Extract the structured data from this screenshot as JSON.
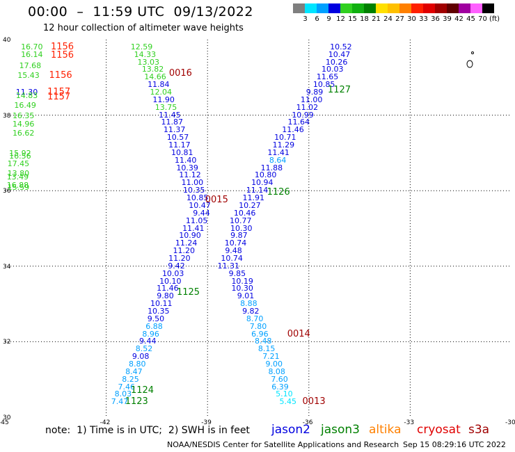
{
  "title": "00:00  –  11:59 UTC  09/13/2022",
  "subtitle": "12 hour collection of altimeter wave heights",
  "scale": {
    "labels": [
      "3",
      "6",
      "9",
      "12",
      "15",
      "18",
      "21",
      "24",
      "27",
      "30",
      "33",
      "36",
      "39",
      "42",
      "45",
      "70",
      "(ft)"
    ],
    "colors": [
      "#7f7f7f",
      "#00e5ff",
      "#00a0ff",
      "#0000e0",
      "#30d020",
      "#10b010",
      "#008000",
      "#ffe000",
      "#ffc000",
      "#ff8000",
      "#ff2000",
      "#e00000",
      "#a00000",
      "#600000",
      "#a000a0",
      "#ff60ff",
      "#000000"
    ]
  },
  "map": {
    "lon_ticks": [
      "-45",
      "-42",
      "-39",
      "-36",
      "-33",
      "-30"
    ],
    "lat_ticks": [
      "40",
      "38",
      "36",
      "34",
      "32",
      "30"
    ],
    "lon_range": [
      -45,
      -30
    ],
    "lat_range": [
      30,
      40
    ]
  },
  "measurements": [
    {
      "text": "10.52",
      "lon": -35.05,
      "lat": 39.8,
      "color": "#0000e0"
    },
    {
      "text": "10.47",
      "lon": -35.1,
      "lat": 39.6,
      "color": "#0000e0"
    },
    {
      "text": "10.26",
      "lon": -35.18,
      "lat": 39.4,
      "color": "#0000e0"
    },
    {
      "text": "10.03",
      "lon": -35.3,
      "lat": 39.2,
      "color": "#0000e0"
    },
    {
      "text": "11.65",
      "lon": -35.45,
      "lat": 39.0,
      "color": "#0000e0"
    },
    {
      "text": "10.85",
      "lon": -35.55,
      "lat": 38.8,
      "color": "#0000e0"
    },
    {
      "text": "9.89",
      "lon": -35.83,
      "lat": 38.6,
      "color": "#0000e0"
    },
    {
      "text": "11.00",
      "lon": -35.92,
      "lat": 38.4,
      "color": "#0000e0"
    },
    {
      "text": "11.02",
      "lon": -36.05,
      "lat": 38.2,
      "color": "#0000e0"
    },
    {
      "text": "10.99",
      "lon": -36.18,
      "lat": 38.0,
      "color": "#0000e0"
    },
    {
      "text": "11.64",
      "lon": -36.3,
      "lat": 37.8,
      "color": "#0000e0"
    },
    {
      "text": "11.46",
      "lon": -36.47,
      "lat": 37.6,
      "color": "#0000e0"
    },
    {
      "text": "10.71",
      "lon": -36.7,
      "lat": 37.4,
      "color": "#0000e0"
    },
    {
      "text": "11.29",
      "lon": -36.75,
      "lat": 37.2,
      "color": "#0000e0"
    },
    {
      "text": "11.41",
      "lon": -36.9,
      "lat": 37.0,
      "color": "#0000e0"
    },
    {
      "text": "8.64",
      "lon": -36.92,
      "lat": 36.8,
      "color": "#00a0ff"
    },
    {
      "text": "11.88",
      "lon": -37.1,
      "lat": 36.6,
      "color": "#0000e0"
    },
    {
      "text": "10.80",
      "lon": -37.28,
      "lat": 36.4,
      "color": "#0000e0"
    },
    {
      "text": "10.94",
      "lon": -37.38,
      "lat": 36.2,
      "color": "#0000e0"
    },
    {
      "text": "11.14",
      "lon": -37.53,
      "lat": 36.0,
      "color": "#0000e0"
    },
    {
      "text": "11.91",
      "lon": -37.64,
      "lat": 35.8,
      "color": "#0000e0"
    },
    {
      "text": "10.27",
      "lon": -37.75,
      "lat": 35.6,
      "color": "#0000e0"
    },
    {
      "text": "10.46",
      "lon": -37.9,
      "lat": 35.4,
      "color": "#0000e0"
    },
    {
      "text": "10.77",
      "lon": -38.02,
      "lat": 35.2,
      "color": "#0000e0"
    },
    {
      "text": "10.30",
      "lon": -38.0,
      "lat": 35.0,
      "color": "#0000e0"
    },
    {
      "text": "9.87",
      "lon": -38.07,
      "lat": 34.8,
      "color": "#0000e0"
    },
    {
      "text": "10.74",
      "lon": -38.17,
      "lat": 34.6,
      "color": "#0000e0"
    },
    {
      "text": "9.48",
      "lon": -38.23,
      "lat": 34.4,
      "color": "#0000e0"
    },
    {
      "text": "10.74",
      "lon": -38.28,
      "lat": 34.2,
      "color": "#0000e0"
    },
    {
      "text": "11.31",
      "lon": -38.38,
      "lat": 34.0,
      "color": "#0000e0"
    },
    {
      "text": "9.85",
      "lon": -38.12,
      "lat": 33.8,
      "color": "#0000e0"
    },
    {
      "text": "10.19",
      "lon": -37.97,
      "lat": 33.6,
      "color": "#0000e0"
    },
    {
      "text": "10.30",
      "lon": -37.97,
      "lat": 33.4,
      "color": "#0000e0"
    },
    {
      "text": "9.01",
      "lon": -37.87,
      "lat": 33.2,
      "color": "#0000e0"
    },
    {
      "text": "8.88",
      "lon": -37.78,
      "lat": 33.0,
      "color": "#00a0ff"
    },
    {
      "text": "9.82",
      "lon": -37.72,
      "lat": 32.8,
      "color": "#0000e0"
    },
    {
      "text": "8.70",
      "lon": -37.6,
      "lat": 32.6,
      "color": "#00a0ff"
    },
    {
      "text": "7.80",
      "lon": -37.5,
      "lat": 32.4,
      "color": "#00a0ff"
    },
    {
      "text": "6.96",
      "lon": -37.45,
      "lat": 32.2,
      "color": "#00a0ff"
    },
    {
      "text": "8.48",
      "lon": -37.35,
      "lat": 32.0,
      "color": "#00a0ff"
    },
    {
      "text": "8.15",
      "lon": -37.25,
      "lat": 31.8,
      "color": "#00a0ff"
    },
    {
      "text": "7.21",
      "lon": -37.12,
      "lat": 31.6,
      "color": "#00a0ff"
    },
    {
      "text": "9.00",
      "lon": -37.03,
      "lat": 31.4,
      "color": "#00a0ff"
    },
    {
      "text": "8.08",
      "lon": -36.95,
      "lat": 31.2,
      "color": "#00a0ff"
    },
    {
      "text": "7.60",
      "lon": -36.87,
      "lat": 31.0,
      "color": "#00a0ff"
    },
    {
      "text": "6.39",
      "lon": -36.85,
      "lat": 30.8,
      "color": "#00a0ff"
    },
    {
      "text": "5.10",
      "lon": -36.73,
      "lat": 30.6,
      "color": "#00e5ff"
    },
    {
      "text": "5.45",
      "lon": -36.62,
      "lat": 30.4,
      "color": "#00e5ff"
    },
    {
      "text": "12.59",
      "lon": -40.95,
      "lat": 39.8,
      "color": "#30d020"
    },
    {
      "text": "14.33",
      "lon": -40.85,
      "lat": 39.6,
      "color": "#30d020"
    },
    {
      "text": "13.03",
      "lon": -40.75,
      "lat": 39.4,
      "color": "#30d020"
    },
    {
      "text": "13.82",
      "lon": -40.62,
      "lat": 39.2,
      "color": "#30d020"
    },
    {
      "text": "14.66",
      "lon": -40.55,
      "lat": 39.0,
      "color": "#30d020"
    },
    {
      "text": "11.84",
      "lon": -40.45,
      "lat": 38.8,
      "color": "#0000e0"
    },
    {
      "text": "12.04",
      "lon": -40.38,
      "lat": 38.6,
      "color": "#30d020"
    },
    {
      "text": "11.90",
      "lon": -40.3,
      "lat": 38.4,
      "color": "#0000e0"
    },
    {
      "text": "13.75",
      "lon": -40.23,
      "lat": 38.2,
      "color": "#30d020"
    },
    {
      "text": "11.45",
      "lon": -40.12,
      "lat": 38.0,
      "color": "#0000e0"
    },
    {
      "text": "11.87",
      "lon": -40.05,
      "lat": 37.8,
      "color": "#0000e0"
    },
    {
      "text": "11.37",
      "lon": -39.98,
      "lat": 37.6,
      "color": "#0000e0"
    },
    {
      "text": "10.57",
      "lon": -39.88,
      "lat": 37.4,
      "color": "#0000e0"
    },
    {
      "text": "11.17",
      "lon": -39.83,
      "lat": 37.2,
      "color": "#0000e0"
    },
    {
      "text": "10.81",
      "lon": -39.75,
      "lat": 37.0,
      "color": "#0000e0"
    },
    {
      "text": "11.40",
      "lon": -39.65,
      "lat": 36.8,
      "color": "#0000e0"
    },
    {
      "text": "10.39",
      "lon": -39.6,
      "lat": 36.6,
      "color": "#0000e0"
    },
    {
      "text": "11.12",
      "lon": -39.52,
      "lat": 36.4,
      "color": "#0000e0"
    },
    {
      "text": "11.00",
      "lon": -39.45,
      "lat": 36.2,
      "color": "#0000e0"
    },
    {
      "text": "10.35",
      "lon": -39.4,
      "lat": 36.0,
      "color": "#0000e0"
    },
    {
      "text": "10.85",
      "lon": -39.3,
      "lat": 35.8,
      "color": "#0000e0"
    },
    {
      "text": "10.47",
      "lon": -39.23,
      "lat": 35.6,
      "color": "#0000e0"
    },
    {
      "text": "9.44",
      "lon": -39.18,
      "lat": 35.4,
      "color": "#0000e0"
    },
    {
      "text": "11.05",
      "lon": -39.32,
      "lat": 35.2,
      "color": "#0000e0"
    },
    {
      "text": "11.41",
      "lon": -39.42,
      "lat": 35.0,
      "color": "#0000e0"
    },
    {
      "text": "10.90",
      "lon": -39.52,
      "lat": 34.8,
      "color": "#0000e0"
    },
    {
      "text": "11.24",
      "lon": -39.63,
      "lat": 34.6,
      "color": "#0000e0"
    },
    {
      "text": "11.20",
      "lon": -39.7,
      "lat": 34.4,
      "color": "#0000e0"
    },
    {
      "text": "11.20",
      "lon": -39.83,
      "lat": 34.2,
      "color": "#0000e0"
    },
    {
      "text": "9.42",
      "lon": -39.92,
      "lat": 34.0,
      "color": "#0000e0"
    },
    {
      "text": "10.03",
      "lon": -40.02,
      "lat": 33.8,
      "color": "#0000e0"
    },
    {
      "text": "10.10",
      "lon": -40.1,
      "lat": 33.6,
      "color": "#0000e0"
    },
    {
      "text": "11.46",
      "lon": -40.18,
      "lat": 33.4,
      "color": "#0000e0"
    },
    {
      "text": "9.80",
      "lon": -40.25,
      "lat": 33.2,
      "color": "#0000e0"
    },
    {
      "text": "10.11",
      "lon": -40.37,
      "lat": 33.0,
      "color": "#0000e0"
    },
    {
      "text": "10.35",
      "lon": -40.45,
      "lat": 32.8,
      "color": "#0000e0"
    },
    {
      "text": "9.50",
      "lon": -40.53,
      "lat": 32.6,
      "color": "#0000e0"
    },
    {
      "text": "6.88",
      "lon": -40.58,
      "lat": 32.4,
      "color": "#00a0ff"
    },
    {
      "text": "8.96",
      "lon": -40.68,
      "lat": 32.2,
      "color": "#00a0ff"
    },
    {
      "text": "9.44",
      "lon": -40.77,
      "lat": 32.0,
      "color": "#0000e0"
    },
    {
      "text": "8.52",
      "lon": -40.88,
      "lat": 31.8,
      "color": "#00a0ff"
    },
    {
      "text": "9.08",
      "lon": -40.98,
      "lat": 31.6,
      "color": "#0000e0"
    },
    {
      "text": "8.80",
      "lon": -41.08,
      "lat": 31.4,
      "color": "#00a0ff"
    },
    {
      "text": "8.47",
      "lon": -41.18,
      "lat": 31.2,
      "color": "#00a0ff"
    },
    {
      "text": "8.25",
      "lon": -41.28,
      "lat": 31.0,
      "color": "#00a0ff"
    },
    {
      "text": "7.46",
      "lon": -41.4,
      "lat": 30.8,
      "color": "#00a0ff"
    },
    {
      "text": "8.03",
      "lon": -41.5,
      "lat": 30.6,
      "color": "#00a0ff"
    },
    {
      "text": "7.47",
      "lon": -41.6,
      "lat": 30.4,
      "color": "#00a0ff"
    },
    {
      "text": "16.70",
      "lon": -44.2,
      "lat": 39.8,
      "color": "#30d020"
    },
    {
      "text": "16.14",
      "lon": -44.2,
      "lat": 39.6,
      "color": "#30d020"
    },
    {
      "text": "17.68",
      "lon": -44.25,
      "lat": 39.3,
      "color": "#30d020"
    },
    {
      "text": "15.43",
      "lon": -44.3,
      "lat": 39.05,
      "color": "#30d020"
    },
    {
      "text": "11.30",
      "lon": -44.35,
      "lat": 38.6,
      "color": "#0000e0"
    },
    {
      "text": "14.83",
      "lon": -44.35,
      "lat": 38.5,
      "color": "#30d020"
    },
    {
      "text": "16.49",
      "lon": -44.4,
      "lat": 38.25,
      "color": "#30d020"
    },
    {
      "text": "16.35",
      "lon": -44.45,
      "lat": 37.98,
      "color": "#30d020"
    },
    {
      "text": "14.96",
      "lon": -44.45,
      "lat": 37.75,
      "color": "#30d020"
    },
    {
      "text": "16.62",
      "lon": -44.45,
      "lat": 37.52,
      "color": "#30d020"
    },
    {
      "text": "15.92",
      "lon": -44.55,
      "lat": 36.98,
      "color": "#30d020"
    },
    {
      "text": "16.56",
      "lon": -44.55,
      "lat": 36.9,
      "color": "#30d020"
    },
    {
      "text": "17.45",
      "lon": -44.6,
      "lat": 36.7,
      "color": "#30d020"
    },
    {
      "text": "13.80",
      "lon": -44.6,
      "lat": 36.45,
      "color": "#30d020"
    },
    {
      "text": "13.49",
      "lon": -44.62,
      "lat": 36.35,
      "color": "#30d020"
    },
    {
      "text": "16.88",
      "lon": -44.62,
      "lat": 36.13,
      "color": "#30d020"
    },
    {
      "text": "15.59",
      "lon": -44.6,
      "lat": 36.07,
      "color": "#30d020"
    }
  ],
  "times": [
    {
      "text": "1156",
      "lon": -43.3,
      "lat": 39.8,
      "color": "#ff2000"
    },
    {
      "text": "1156",
      "lon": -43.3,
      "lat": 39.58,
      "color": "#ff2000"
    },
    {
      "text": "1156",
      "lon": -43.35,
      "lat": 39.05,
      "color": "#ff2000"
    },
    {
      "text": "1157",
      "lon": -43.4,
      "lat": 38.6,
      "color": "#ff2000"
    },
    {
      "text": "1157",
      "lon": -43.4,
      "lat": 38.48,
      "color": "#ff2000"
    },
    {
      "text": "0016",
      "lon": -39.8,
      "lat": 39.1,
      "color": "#a00000"
    },
    {
      "text": "1127",
      "lon": -35.1,
      "lat": 38.65,
      "color": "#008000"
    },
    {
      "text": "1126",
      "lon": -36.9,
      "lat": 35.95,
      "color": "#008000"
    },
    {
      "text": "0015",
      "lon": -38.73,
      "lat": 35.75,
      "color": "#a00000"
    },
    {
      "text": "1125",
      "lon": -39.57,
      "lat": 33.3,
      "color": "#008000"
    },
    {
      "text": "0014",
      "lon": -36.3,
      "lat": 32.2,
      "color": "#a00000"
    },
    {
      "text": "1124",
      "lon": -40.93,
      "lat": 30.7,
      "color": "#008000"
    },
    {
      "text": "1123",
      "lon": -41.1,
      "lat": 30.4,
      "color": "#008000"
    },
    {
      "text": "0013",
      "lon": -35.85,
      "lat": 30.4,
      "color": "#a00000"
    }
  ],
  "note": "note:  1) Time is in UTC;  2) SWH is in feet",
  "satellites": [
    {
      "name": "jason2",
      "color": "#0000e0"
    },
    {
      "name": "jason3",
      "color": "#008000"
    },
    {
      "name": "altika",
      "color": "#ff8000"
    },
    {
      "name": "cryosat",
      "color": "#e00000"
    },
    {
      "name": "s3a",
      "color": "#a00000"
    }
  ],
  "credit": "NOAA/NESDIS Center for Satellite Applications and Research",
  "timestamp": "Sep 15 08:29:16 UTC 2022"
}
